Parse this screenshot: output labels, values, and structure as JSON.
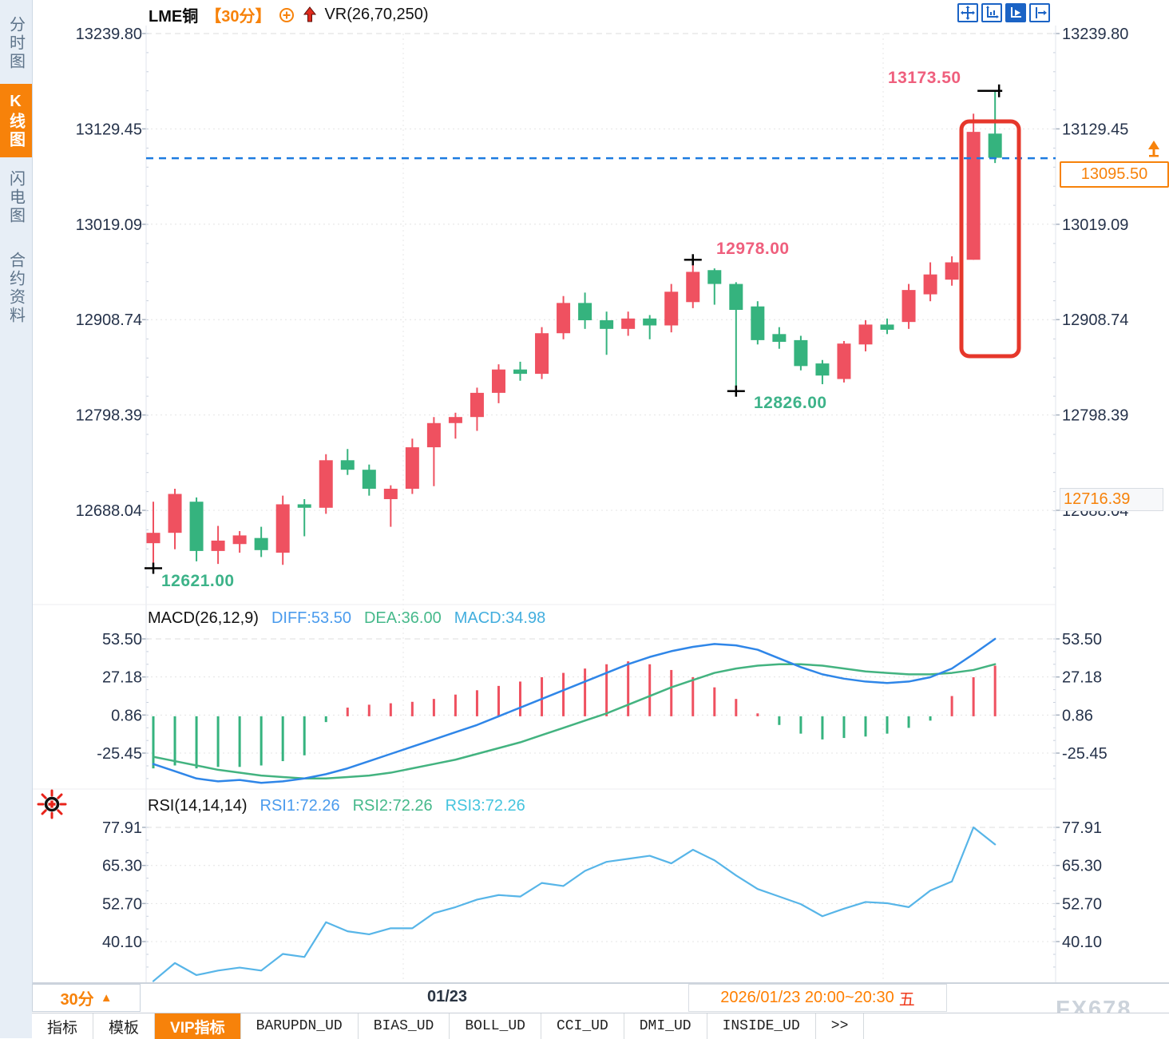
{
  "app": {
    "sidebar": {
      "items": [
        {
          "label": "分时图",
          "active": false
        },
        {
          "label": "K线图",
          "active": true
        },
        {
          "label": "闪电图",
          "active": false
        },
        {
          "label": "合约资料",
          "active": false
        }
      ]
    },
    "header": {
      "symbol": "LME铜",
      "interval": "【30分】",
      "overlay_indicator": "VR(26,70,250)"
    },
    "toolbar": {
      "icons": [
        "move-cross",
        "zoom-axes",
        "axes-play",
        "shift-right"
      ],
      "active_icon": "axes-play"
    },
    "timeline": {
      "interval": "30分",
      "interval_arrow": "▲",
      "date_label": "01/23",
      "session_label": "2026/01/23 20:00~20:30",
      "weekday": "五"
    },
    "bottom_tabs": {
      "items": [
        {
          "label": "指标",
          "active": false,
          "mono": false
        },
        {
          "label": "模板",
          "active": false,
          "mono": false
        },
        {
          "label": "VIP指标",
          "active": true,
          "mono": false
        },
        {
          "label": "BARUPDN_UD",
          "active": false,
          "mono": true
        },
        {
          "label": "BIAS_UD",
          "active": false,
          "mono": true
        },
        {
          "label": "BOLL_UD",
          "active": false,
          "mono": true
        },
        {
          "label": "CCI_UD",
          "active": false,
          "mono": true
        },
        {
          "label": "DMI_UD",
          "active": false,
          "mono": true
        },
        {
          "label": "INSIDE_UD",
          "active": false,
          "mono": true
        },
        {
          "label": ">>",
          "active": false,
          "mono": true
        }
      ]
    },
    "watermark": "FX678",
    "colors": {
      "accent_orange": "#f7820a",
      "up_red": "#ef5160",
      "down_green": "#35b37e",
      "dashed_line_blue": "#1c7be0",
      "annotation_red": "#e6372b",
      "diff_blue": "#2f86e8",
      "dea_green": "#43b380",
      "rsi_blue": "#57b5e8"
    }
  },
  "chart_data": [
    {
      "type": "candlestick",
      "title": "LME铜 【30分】 VR(26,70,250)",
      "interval": "30分",
      "y_axis_ticks": [
        13239.8,
        13129.45,
        13019.09,
        12908.74,
        12798.39,
        12688.04
      ],
      "current_price": 13095.5,
      "right_axis_tag": 12716.39,
      "x_axis_labels": [
        "01/23"
      ],
      "grid": true,
      "annotations": {
        "high_label": {
          "text": "13173.50",
          "price": 13173.5,
          "candle_index": 39
        },
        "peak_label": {
          "text": "12978.00",
          "price": 12978.0,
          "candle_index": 25
        },
        "trough_label": {
          "text": "12826.00",
          "price": 12826.0,
          "candle_index": 27
        },
        "low_label": {
          "text": "12621.00",
          "price": 12621.0,
          "candle_index": 0
        },
        "dashed_line_price": 13095.5,
        "highlight_box": "red rounded rectangle around last two candles"
      },
      "candles": [
        [
          12650,
          12698,
          12621,
          12662
        ],
        [
          12662,
          12713,
          12643,
          12707
        ],
        [
          12698,
          12703,
          12629,
          12641
        ],
        [
          12641,
          12670,
          12626,
          12653
        ],
        [
          12649,
          12664,
          12639,
          12659
        ],
        [
          12656,
          12669,
          12634,
          12642
        ],
        [
          12639,
          12705,
          12625,
          12695
        ],
        [
          12695,
          12701,
          12658,
          12691
        ],
        [
          12691,
          12753,
          12684,
          12746
        ],
        [
          12746,
          12759,
          12729,
          12735
        ],
        [
          12735,
          12741,
          12705,
          12713
        ],
        [
          12701,
          12717,
          12669,
          12713
        ],
        [
          12713,
          12771,
          12707,
          12761
        ],
        [
          12761,
          12796,
          12716,
          12789
        ],
        [
          12789,
          12801,
          12771,
          12796
        ],
        [
          12796,
          12830,
          12780,
          12824
        ],
        [
          12824,
          12857,
          12812,
          12851
        ],
        [
          12851,
          12860,
          12838,
          12846
        ],
        [
          12846,
          12900,
          12840,
          12893
        ],
        [
          12893,
          12936,
          12886,
          12928
        ],
        [
          12928,
          12940,
          12898,
          12908
        ],
        [
          12908,
          12918,
          12868,
          12898
        ],
        [
          12898,
          12918,
          12890,
          12910
        ],
        [
          12910,
          12914,
          12886,
          12902
        ],
        [
          12902,
          12950,
          12894,
          12941
        ],
        [
          12929,
          12978,
          12922,
          12964
        ],
        [
          12966,
          12968,
          12926,
          12950
        ],
        [
          12950,
          12952,
          12826,
          12920
        ],
        [
          12924,
          12930,
          12880,
          12885
        ],
        [
          12892,
          12900,
          12875,
          12883
        ],
        [
          12885,
          12890,
          12850,
          12855
        ],
        [
          12858,
          12862,
          12834,
          12844
        ],
        [
          12840,
          12884,
          12836,
          12881
        ],
        [
          12880,
          12908,
          12872,
          12903
        ],
        [
          12903,
          12910,
          12892,
          12897
        ],
        [
          12906,
          12950,
          12898,
          12943
        ],
        [
          12938,
          12975,
          12930,
          12961
        ],
        [
          12955,
          12982,
          12948,
          12975
        ],
        [
          12978,
          13147,
          12978,
          13126
        ],
        [
          13124,
          13173.5,
          13090,
          13096
        ]
      ]
    },
    {
      "type": "line",
      "name": "MACD",
      "params_label": "MACD(26,12,9)",
      "legend": [
        {
          "label": "DIFF:53.50",
          "color": "#4a9bed"
        },
        {
          "label": "DEA:36.00",
          "color": "#46b98b"
        },
        {
          "label": "MACD:34.98",
          "color": "#43aede"
        }
      ],
      "y_ticks": [
        53.5,
        27.18,
        0.86,
        -25.45
      ],
      "series": [
        {
          "name": "DIFF",
          "values": [
            -33,
            -38,
            -43,
            -45,
            -44,
            -46,
            -45,
            -43,
            -40,
            -36,
            -31,
            -26,
            -21,
            -16,
            -11,
            -6,
            0,
            6,
            12,
            18,
            24,
            30,
            36,
            41,
            45,
            48,
            50,
            49,
            46,
            40,
            34,
            29,
            26,
            24,
            23,
            24,
            27,
            33,
            43,
            53.5
          ]
        },
        {
          "name": "DEA",
          "values": [
            -28,
            -31,
            -34,
            -37,
            -39,
            -41,
            -42,
            -43,
            -43,
            -42,
            -41,
            -39,
            -36,
            -33,
            -30,
            -26,
            -22,
            -18,
            -13,
            -8,
            -3,
            2,
            8,
            14,
            20,
            25,
            30,
            33,
            35,
            36,
            36,
            35,
            33,
            31,
            30,
            29,
            29,
            30,
            32,
            36
          ]
        },
        {
          "name": "HIST",
          "values": [
            -36,
            -34,
            -36,
            -35,
            -35,
            -34,
            -31,
            -27,
            -4,
            6,
            8,
            9,
            10,
            12,
            15,
            18,
            21,
            24,
            27,
            30,
            33,
            36,
            38,
            36,
            32,
            27,
            20,
            12,
            2,
            -6,
            -12,
            -16,
            -15,
            -14,
            -12,
            -8,
            -3,
            14,
            27,
            35
          ]
        }
      ]
    },
    {
      "type": "line",
      "name": "RSI",
      "params_label": "RSI(14,14,14)",
      "legend": [
        {
          "label": "RSI1:72.26",
          "color": "#4a9bed"
        },
        {
          "label": "RSI2:72.26",
          "color": "#46b98b"
        },
        {
          "label": "RSI3:72.26",
          "color": "#45c4de"
        }
      ],
      "y_ticks": [
        77.91,
        65.3,
        52.7,
        40.1
      ],
      "series": [
        {
          "name": "RSI",
          "values": [
            27,
            33,
            29,
            30.5,
            31.5,
            30.5,
            36,
            35,
            46.5,
            43.5,
            42.5,
            44.5,
            44.5,
            49.5,
            51.5,
            54,
            55.5,
            55,
            59.5,
            58.5,
            63.5,
            66.5,
            67.5,
            68.5,
            66,
            70.5,
            67,
            62,
            57.5,
            55,
            52.5,
            48.5,
            51,
            53.2,
            52.8,
            51.5,
            57,
            60,
            77.91,
            72.26
          ]
        }
      ]
    }
  ]
}
